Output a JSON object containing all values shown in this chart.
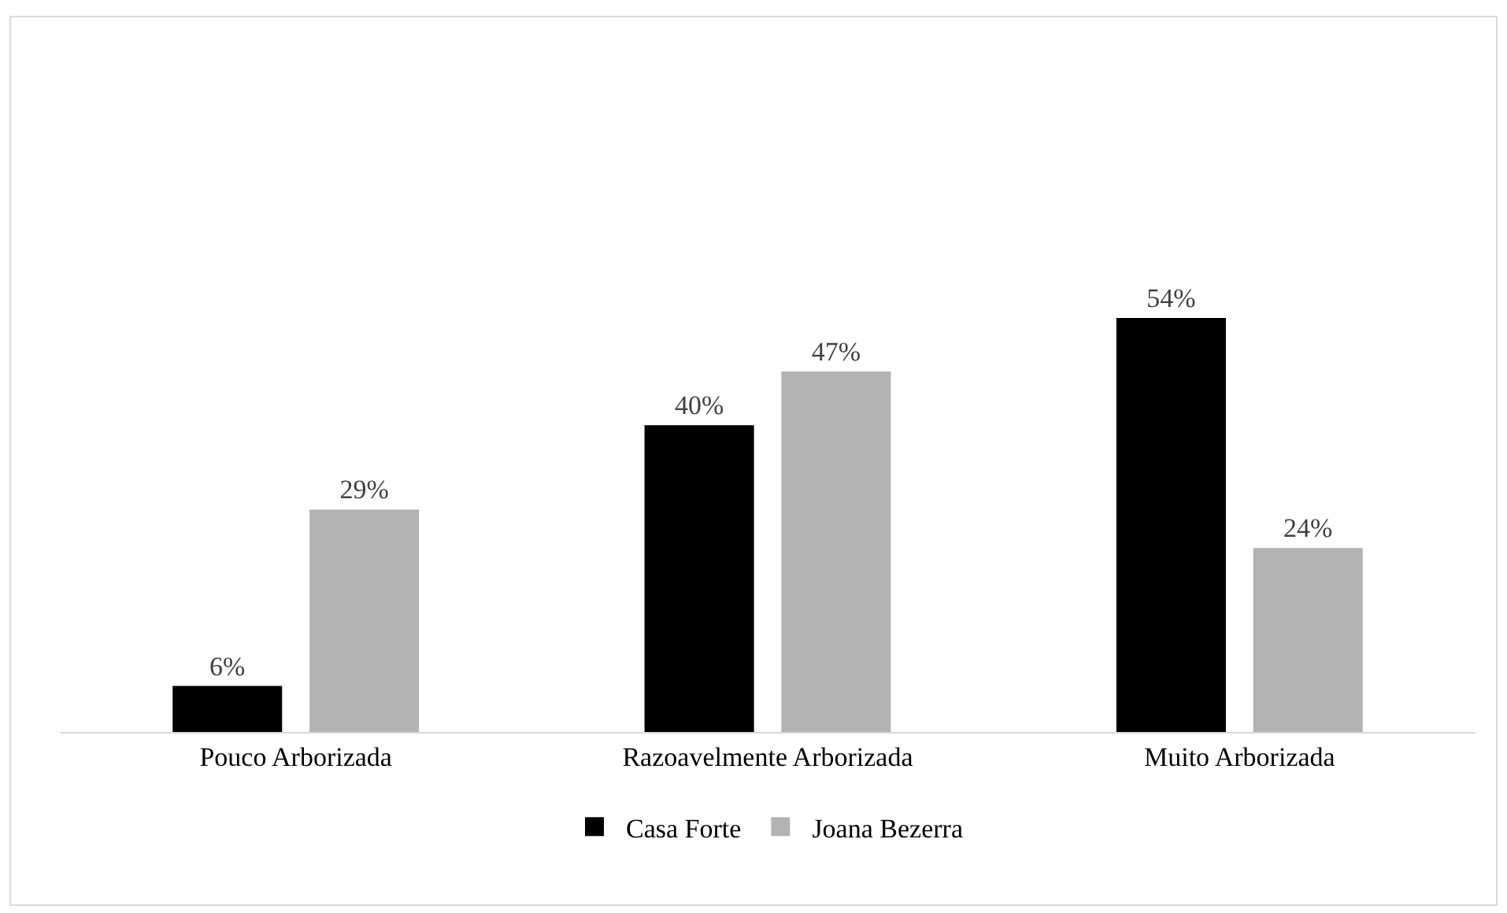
{
  "chart_data": {
    "type": "bar",
    "categories": [
      "Pouco Arborizada",
      "Razoavelmente Arborizada",
      "Muito Arborizada"
    ],
    "series": [
      {
        "name": "Casa Forte",
        "color": "#000000",
        "values": [
          6,
          40,
          54
        ],
        "value_labels": [
          "6%",
          "40%",
          "54%"
        ]
      },
      {
        "name": "Joana Bezerra",
        "color": "#b3b3b3",
        "values": [
          29,
          47,
          24
        ],
        "value_labels": [
          "29%",
          "47%",
          "24%"
        ]
      }
    ],
    "tick_labels": "x",
    "legend": "bottom"
  }
}
